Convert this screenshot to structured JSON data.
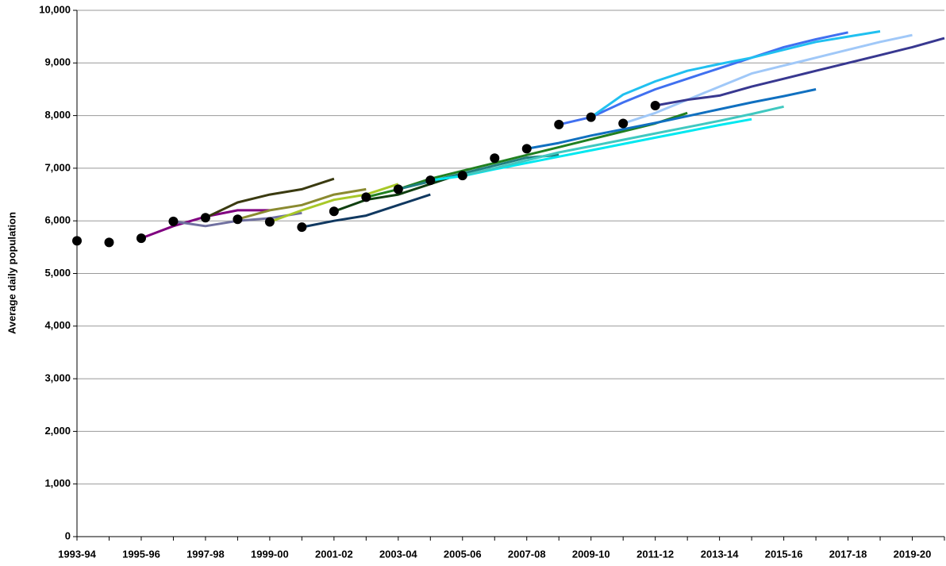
{
  "chart_data": {
    "type": "line",
    "y_label": "Average daily population",
    "categories": [
      "1993-94",
      null,
      "1995-96",
      null,
      "1997-98",
      null,
      "1999-00",
      null,
      "2001-02",
      null,
      "2003-04",
      null,
      "2005-06",
      null,
      "2007-08",
      null,
      "2009-10",
      null,
      "2011-12",
      null,
      "2013-14",
      null,
      "2015-16",
      null,
      "2017-18",
      null,
      "2019-20",
      null
    ],
    "ylim": [
      0,
      10000
    ],
    "yticks": [
      0,
      {
        "value": 1000,
        "label": "1,000"
      },
      {
        "value": 2000,
        "label": "2,000"
      },
      {
        "value": 3000,
        "label": "3,000"
      },
      {
        "value": 4000,
        "label": "4,000"
      },
      {
        "value": 5000,
        "label": "5,000"
      },
      {
        "value": 6000,
        "label": "6,000"
      },
      {
        "value": 7000,
        "label": "7,000"
      },
      {
        "value": 8000,
        "label": "8,000"
      },
      {
        "value": 9000,
        "label": "9,000"
      },
      {
        "value": 10000,
        "label": "10,000"
      }
    ],
    "grid": true,
    "series": [
      {
        "color": "#800080",
        "values": [
          null,
          null,
          5670,
          5900,
          6080,
          6200,
          6200,
          null,
          null,
          null,
          null,
          null,
          null,
          null,
          null,
          null,
          null,
          null,
          null,
          null,
          null,
          null,
          null,
          null,
          null,
          null,
          null,
          null
        ]
      },
      {
        "color": "#7070a0",
        "values": [
          null,
          null,
          null,
          5990,
          5900,
          6000,
          6050,
          6150,
          null,
          null,
          null,
          null,
          null,
          null,
          null,
          null,
          null,
          null,
          null,
          null,
          null,
          null,
          null,
          null,
          null,
          null,
          null,
          null
        ]
      },
      {
        "color": "#3a3a10",
        "values": [
          null,
          null,
          null,
          null,
          6060,
          6350,
          6500,
          6600,
          6800,
          null,
          null,
          null,
          null,
          null,
          null,
          null,
          null,
          null,
          null,
          null,
          null,
          null,
          null,
          null,
          null,
          null,
          null,
          null
        ]
      },
      {
        "color": "#8a8a30",
        "values": [
          null,
          null,
          null,
          null,
          null,
          6030,
          6200,
          6300,
          6500,
          6600,
          null,
          null,
          null,
          null,
          null,
          null,
          null,
          null,
          null,
          null,
          null,
          null,
          null,
          null,
          null,
          null,
          null,
          null
        ]
      },
      {
        "color": "#a8c828",
        "values": [
          null,
          null,
          null,
          null,
          null,
          null,
          5980,
          6200,
          6400,
          6500,
          6700,
          null,
          null,
          null,
          null,
          null,
          null,
          null,
          null,
          null,
          null,
          null,
          null,
          null,
          null,
          null,
          null,
          null
        ]
      },
      {
        "color": "#103860",
        "values": [
          null,
          null,
          null,
          null,
          null,
          null,
          null,
          5880,
          6000,
          6100,
          6300,
          6500,
          null,
          null,
          null,
          null,
          null,
          null,
          null,
          null,
          null,
          null,
          null,
          null,
          null,
          null,
          null,
          null
        ]
      },
      {
        "color": "#104010",
        "values": [
          null,
          null,
          null,
          null,
          null,
          null,
          null,
          null,
          6180,
          6400,
          6500,
          6700,
          6900,
          null,
          null,
          null,
          null,
          null,
          null,
          null,
          null,
          null,
          null,
          null,
          null,
          null,
          null,
          null
        ]
      },
      {
        "color": "#208020",
        "values": [
          null,
          null,
          null,
          null,
          null,
          null,
          null,
          null,
          null,
          6450,
          6600,
          6800,
          6950,
          7100,
          7250,
          7400,
          7550,
          7700,
          7850,
          8050,
          null,
          null,
          null,
          null,
          null,
          null,
          null,
          null
        ]
      },
      {
        "color": "#208080",
        "values": [
          null,
          null,
          null,
          null,
          null,
          null,
          null,
          null,
          null,
          null,
          6600,
          6750,
          6900,
          7050,
          7200,
          7250,
          null,
          null,
          null,
          null,
          null,
          null,
          null,
          null,
          null,
          null,
          null,
          null
        ]
      },
      {
        "color": "#00e8f0",
        "values": [
          null,
          null,
          null,
          null,
          null,
          null,
          null,
          null,
          null,
          null,
          null,
          6770,
          6850,
          6980,
          7100,
          7220,
          7340,
          7460,
          7580,
          7700,
          7820,
          7930,
          null,
          null,
          null,
          null,
          null,
          null
        ]
      },
      {
        "color": "#40c8c0",
        "values": [
          null,
          null,
          null,
          null,
          null,
          null,
          null,
          null,
          null,
          null,
          null,
          null,
          6860,
          7000,
          7150,
          7300,
          7420,
          7540,
          7660,
          7780,
          7900,
          8030,
          8170,
          null,
          null,
          null,
          null,
          null
        ]
      },
      {
        "color": "#1070c0",
        "values": [
          null,
          null,
          null,
          null,
          null,
          null,
          null,
          null,
          null,
          null,
          null,
          null,
          null,
          null,
          7370,
          7480,
          7620,
          7740,
          7860,
          7990,
          8120,
          8250,
          8370,
          8500,
          null,
          null,
          null,
          null
        ]
      },
      {
        "color": "#4070f0",
        "values": [
          null,
          null,
          null,
          null,
          null,
          null,
          null,
          null,
          null,
          null,
          null,
          null,
          null,
          null,
          null,
          7830,
          7970,
          8250,
          8500,
          8700,
          8900,
          9100,
          9300,
          9450,
          9580,
          null,
          null,
          null
        ]
      },
      {
        "color": "#20c0f0",
        "values": [
          null,
          null,
          null,
          null,
          null,
          null,
          null,
          null,
          null,
          null,
          null,
          null,
          null,
          null,
          null,
          null,
          7970,
          8400,
          8650,
          8850,
          8980,
          9100,
          9250,
          9400,
          9500,
          9600,
          null,
          null
        ]
      },
      {
        "color": "#a0c8f8",
        "values": [
          null,
          null,
          null,
          null,
          null,
          null,
          null,
          null,
          null,
          null,
          null,
          null,
          null,
          null,
          null,
          null,
          null,
          7850,
          8050,
          8300,
          8550,
          8800,
          8950,
          9100,
          9250,
          9400,
          9530,
          null
        ]
      },
      {
        "color": "#383890",
        "values": [
          null,
          null,
          null,
          null,
          null,
          null,
          null,
          null,
          null,
          null,
          null,
          null,
          null,
          null,
          null,
          null,
          null,
          null,
          8190,
          8300,
          8380,
          8550,
          8700,
          8850,
          9000,
          9150,
          9300,
          9470
        ]
      },
      {
        "color": "#000000",
        "line": false,
        "marker": true,
        "values": [
          5620,
          5590,
          5670,
          5990,
          6060,
          6030,
          5980,
          5880,
          6180,
          6450,
          6600,
          6770,
          6860,
          7190,
          7370,
          7830,
          7970,
          7850,
          8190,
          null,
          null,
          null,
          null,
          null,
          null,
          null,
          null,
          null
        ]
      }
    ]
  }
}
